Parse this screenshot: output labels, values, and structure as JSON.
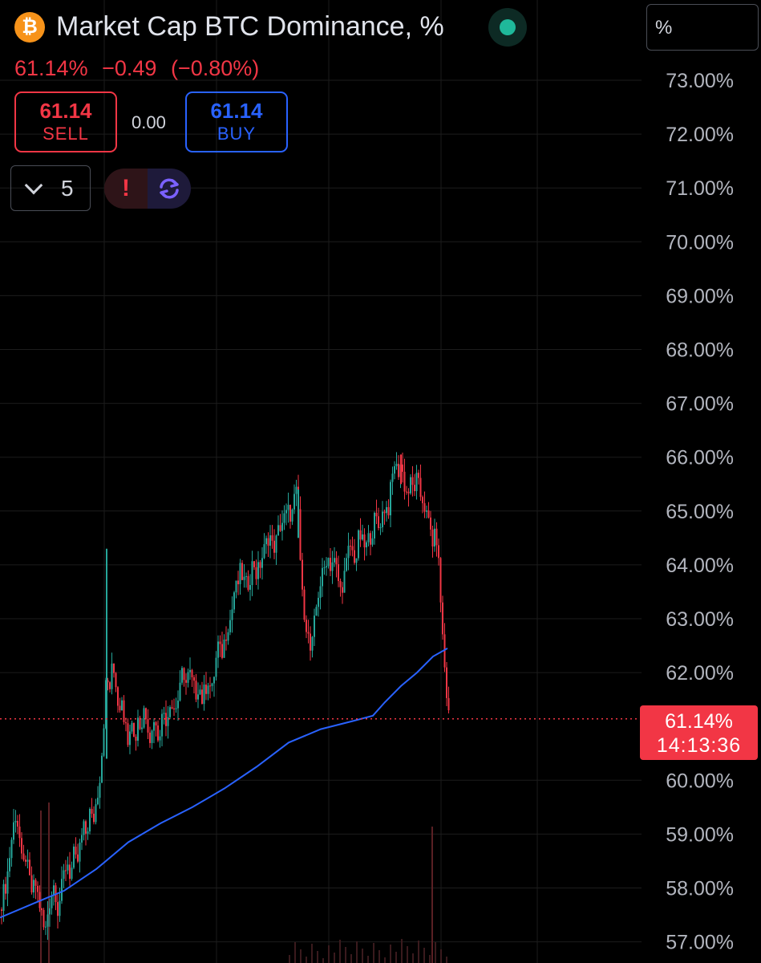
{
  "header": {
    "symbol_icon": "bitcoin-icon",
    "symbol_glyph": "₿",
    "title": "Market Cap BTC Dominance, %",
    "status": "live-dot-icon",
    "unit_label": "%"
  },
  "quote": {
    "last": "61.14%",
    "change": "−0.49",
    "change_pct": "(−0.80%)"
  },
  "trade": {
    "sell_price": "61.14",
    "sell_label": "SELL",
    "spread": "0.00",
    "buy_price": "61.14",
    "buy_label": "BUY"
  },
  "toolbar": {
    "interval_icon": "chevron-down-icon",
    "interval": "5",
    "alert_icon": "exclamation-icon",
    "alert_glyph": "!",
    "sync_icon": "refresh-icon"
  },
  "price_tag": {
    "price": "61.14%",
    "countdown": "14:13:36"
  },
  "colors": {
    "up": "#26a69a",
    "down": "#f23645",
    "ma": "#2962ff",
    "grid": "#1c1c1c",
    "axis_text": "#b2b5be"
  },
  "chart_data": {
    "type": "candlestick",
    "title": "Market Cap BTC Dominance, %",
    "y_ticks": [
      "73.00%",
      "72.00%",
      "71.00%",
      "70.00%",
      "69.00%",
      "68.00%",
      "67.00%",
      "66.00%",
      "65.00%",
      "64.00%",
      "63.00%",
      "62.00%",
      "60.00%",
      "59.00%",
      "58.00%",
      "57.00%"
    ],
    "y_tick_values": [
      73,
      72,
      71,
      70,
      69,
      68,
      67,
      66,
      65,
      64,
      63,
      62,
      60,
      59,
      58,
      57
    ],
    "ylim": [
      56.6,
      73.4
    ],
    "last_price": 61.14,
    "grid": true,
    "price_path": [
      [
        0,
        57.6
      ],
      [
        4,
        57.9
      ],
      [
        8,
        58.1
      ],
      [
        12,
        58.6
      ],
      [
        16,
        59.1
      ],
      [
        20,
        59.4
      ],
      [
        24,
        59.0
      ],
      [
        28,
        58.3
      ],
      [
        32,
        58.6
      ],
      [
        36,
        58.2
      ],
      [
        40,
        57.9
      ],
      [
        44,
        58.1
      ],
      [
        48,
        57.8
      ],
      [
        52,
        57.5
      ],
      [
        56,
        57.1
      ],
      [
        60,
        57.6
      ],
      [
        64,
        57.9
      ],
      [
        68,
        58.1
      ],
      [
        72,
        57.6
      ],
      [
        76,
        57.9
      ],
      [
        80,
        58.3
      ],
      [
        84,
        58.5
      ],
      [
        88,
        58.2
      ],
      [
        92,
        58.6
      ],
      [
        96,
        58.4
      ],
      [
        100,
        58.8
      ],
      [
        104,
        59.1
      ],
      [
        108,
        59.0
      ],
      [
        112,
        59.4
      ],
      [
        116,
        59.2
      ],
      [
        120,
        59.6
      ],
      [
        124,
        60.0
      ],
      [
        128,
        60.7
      ],
      [
        131,
        61.5
      ],
      [
        133,
        62.0
      ],
      [
        136,
        61.6
      ],
      [
        140,
        62.1
      ],
      [
        144,
        61.9
      ],
      [
        148,
        61.3
      ],
      [
        152,
        61.6
      ],
      [
        156,
        61.0
      ],
      [
        160,
        60.8
      ],
      [
        164,
        61.3
      ],
      [
        168,
        60.6
      ],
      [
        172,
        61.2
      ],
      [
        176,
        60.9
      ],
      [
        180,
        61.4
      ],
      [
        184,
        61.1
      ],
      [
        188,
        60.7
      ],
      [
        192,
        61.2
      ],
      [
        196,
        60.8
      ],
      [
        200,
        61.0
      ],
      [
        204,
        61.3
      ],
      [
        208,
        61.1
      ],
      [
        212,
        61.5
      ],
      [
        216,
        61.3
      ],
      [
        220,
        61.4
      ],
      [
        224,
        61.6
      ],
      [
        228,
        62.1
      ],
      [
        232,
        61.8
      ],
      [
        236,
        62.0
      ],
      [
        240,
        61.8
      ],
      [
        244,
        61.6
      ],
      [
        248,
        61.8
      ],
      [
        252,
        61.5
      ],
      [
        256,
        61.7
      ],
      [
        260,
        61.9
      ],
      [
        264,
        61.6
      ],
      [
        268,
        62.1
      ],
      [
        272,
        62.5
      ],
      [
        276,
        62.3
      ],
      [
        280,
        62.6
      ],
      [
        284,
        62.9
      ],
      [
        288,
        63.0
      ],
      [
        292,
        63.5
      ],
      [
        296,
        63.6
      ],
      [
        300,
        63.9
      ],
      [
        304,
        63.7
      ],
      [
        308,
        63.6
      ],
      [
        312,
        63.8
      ],
      [
        316,
        64.1
      ],
      [
        320,
        63.8
      ],
      [
        324,
        64.0
      ],
      [
        328,
        64.2
      ],
      [
        332,
        64.4
      ],
      [
        336,
        64.6
      ],
      [
        340,
        64.3
      ],
      [
        344,
        64.4
      ],
      [
        348,
        64.7
      ],
      [
        352,
        64.8
      ],
      [
        356,
        64.9
      ],
      [
        360,
        65.0
      ],
      [
        364,
        64.9
      ],
      [
        368,
        65.3
      ],
      [
        371,
        65.3
      ],
      [
        373,
        64.7
      ],
      [
        376,
        63.5
      ],
      [
        380,
        63.1
      ],
      [
        384,
        62.7
      ],
      [
        388,
        62.3
      ],
      [
        392,
        62.9
      ],
      [
        396,
        63.4
      ],
      [
        400,
        63.7
      ],
      [
        404,
        63.9
      ],
      [
        408,
        64.2
      ],
      [
        412,
        64.0
      ],
      [
        416,
        64.1
      ],
      [
        420,
        63.9
      ],
      [
        424,
        63.5
      ],
      [
        428,
        63.7
      ],
      [
        432,
        64.0
      ],
      [
        436,
        64.4
      ],
      [
        440,
        64.2
      ],
      [
        444,
        64.1
      ],
      [
        448,
        64.6
      ],
      [
        452,
        64.4
      ],
      [
        456,
        64.3
      ],
      [
        460,
        64.5
      ],
      [
        464,
        64.6
      ],
      [
        468,
        64.9
      ],
      [
        472,
        64.7
      ],
      [
        476,
        64.9
      ],
      [
        480,
        65.1
      ],
      [
        484,
        65.0
      ],
      [
        488,
        65.5
      ],
      [
        492,
        65.9
      ],
      [
        496,
        65.7
      ],
      [
        500,
        65.9
      ],
      [
        504,
        65.5
      ],
      [
        508,
        65.3
      ],
      [
        512,
        65.5
      ],
      [
        516,
        65.4
      ],
      [
        520,
        65.6
      ],
      [
        524,
        65.3
      ],
      [
        528,
        65.2
      ],
      [
        532,
        64.9
      ],
      [
        536,
        64.7
      ],
      [
        540,
        64.4
      ],
      [
        544,
        64.6
      ],
      [
        548,
        63.8
      ],
      [
        551,
        62.9
      ],
      [
        554,
        62.2
      ],
      [
        557,
        61.6
      ],
      [
        560,
        61.14
      ]
    ],
    "ma_path": [
      [
        0,
        57.45
      ],
      [
        40,
        57.7
      ],
      [
        80,
        57.95
      ],
      [
        120,
        58.35
      ],
      [
        160,
        58.85
      ],
      [
        200,
        59.2
      ],
      [
        240,
        59.5
      ],
      [
        280,
        59.85
      ],
      [
        320,
        60.25
      ],
      [
        360,
        60.7
      ],
      [
        400,
        60.95
      ],
      [
        440,
        61.1
      ],
      [
        465,
        61.2
      ],
      [
        480,
        61.45
      ],
      [
        500,
        61.75
      ],
      [
        520,
        62.0
      ],
      [
        540,
        62.3
      ],
      [
        558,
        62.45
      ]
    ],
    "volume_spikes": [
      [
        543,
        1220
      ],
      [
        538,
        1030
      ],
      [
        50,
        1010
      ],
      [
        60,
        1000
      ]
    ]
  }
}
